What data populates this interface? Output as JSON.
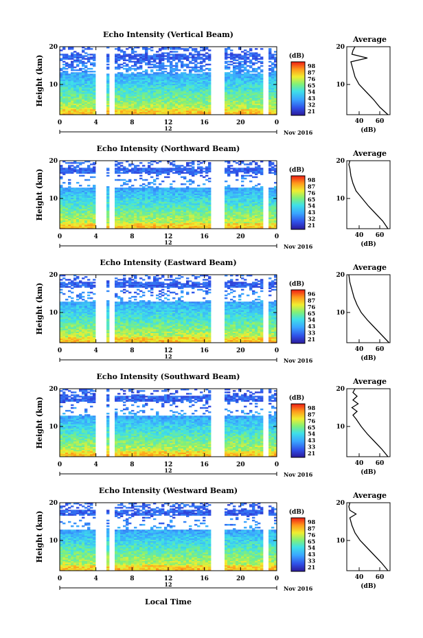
{
  "chart_data": {
    "type": "heatmap",
    "panels": [
      {
        "title": "Echo Intensity (Vertical Beam)",
        "ylabel": "Height (km)",
        "yticks": [
          "20",
          "10"
        ],
        "xticks": [
          "0",
          "4",
          "8",
          "12",
          "16",
          "20",
          "0"
        ],
        "date_marker": "12",
        "date_label": "Nov 2016",
        "colorbar_label": "(dB)",
        "colorbar_ticks": [
          "98",
          "87",
          "76",
          "65",
          "54",
          "43",
          "32",
          "21"
        ],
        "profile": {
          "title": "Average",
          "xlabel": "(dB)",
          "xticks": [
            "40",
            "60"
          ],
          "yticks": [
            "20",
            "10"
          ],
          "xlim": [
            28,
            70
          ],
          "heights_km": [
            2,
            4,
            6,
            8,
            10,
            12,
            14,
            16,
            17,
            18,
            19,
            20
          ],
          "values_db": [
            68,
            60,
            54,
            47,
            40,
            36,
            34,
            32,
            48,
            33,
            34,
            36
          ]
        }
      },
      {
        "title": "Echo Intensity (Northward Beam)",
        "ylabel": "Height (km)",
        "yticks": [
          "20",
          "10"
        ],
        "xticks": [
          "0",
          "4",
          "8",
          "12",
          "16",
          "20",
          "0"
        ],
        "date_marker": "12",
        "date_label": "Nov 2016",
        "colorbar_label": "(dB)",
        "colorbar_ticks": [
          "98",
          "87",
          "76",
          "65",
          "54",
          "43",
          "32",
          "21"
        ],
        "profile": {
          "title": "Average",
          "xlabel": "(dB)",
          "xticks": [
            "40",
            "60"
          ],
          "yticks": [
            "20",
            "10"
          ],
          "xlim": [
            28,
            70
          ],
          "heights_km": [
            2,
            4,
            6,
            8,
            10,
            12,
            14,
            16,
            18,
            19,
            20
          ],
          "values_db": [
            68,
            63,
            56,
            49,
            43,
            37,
            34,
            32,
            31,
            30,
            31
          ]
        }
      },
      {
        "title": "Echo Intensity (Eastward Beam)",
        "ylabel": "Height (km)",
        "yticks": [
          "20",
          "10"
        ],
        "xticks": [
          "0",
          "4",
          "8",
          "12",
          "16",
          "20",
          "0"
        ],
        "date_marker": "12",
        "date_label": "Nov 2016",
        "colorbar_label": "(dB)",
        "colorbar_ticks": [
          "96",
          "87",
          "76",
          "65",
          "54",
          "43",
          "33",
          "21"
        ],
        "profile": {
          "title": "Average",
          "xlabel": "(dB)",
          "xticks": [
            "40",
            "60"
          ],
          "yticks": [
            "20",
            "10"
          ],
          "xlim": [
            28,
            70
          ],
          "heights_km": [
            2,
            4,
            6,
            8,
            10,
            11,
            12,
            14,
            16,
            18,
            20
          ],
          "values_db": [
            69,
            62,
            55,
            48,
            42,
            40,
            38,
            35,
            33,
            31,
            30
          ]
        }
      },
      {
        "title": "Echo Intensity (Southward Beam)",
        "ylabel": "Height (km)",
        "yticks": [
          "20",
          "10"
        ],
        "xticks": [
          "0",
          "4",
          "8",
          "12",
          "16",
          "20",
          "0"
        ],
        "date_marker": "12",
        "date_label": "Nov 2016",
        "colorbar_label": "(dB)",
        "colorbar_ticks": [
          "98",
          "87",
          "76",
          "65",
          "54",
          "43",
          "33",
          "21"
        ],
        "profile": {
          "title": "Average",
          "xlabel": "(dB)",
          "xticks": [
            "40",
            "60"
          ],
          "yticks": [
            "20",
            "10"
          ],
          "xlim": [
            28,
            70
          ],
          "heights_km": [
            2,
            4,
            6,
            8,
            10,
            12,
            13,
            14,
            15,
            16,
            17,
            18,
            19,
            20
          ],
          "values_db": [
            68,
            62,
            55,
            48,
            42,
            37,
            34,
            38,
            33,
            39,
            34,
            38,
            34,
            36
          ]
        }
      },
      {
        "title": "Echo Intensity (Westward Beam)",
        "ylabel": "Height (km)",
        "yticks": [
          "20",
          "10"
        ],
        "xticks": [
          "0",
          "4",
          "8",
          "12",
          "16",
          "20",
          "0"
        ],
        "date_marker": "12",
        "date_label": "Nov 2016",
        "colorbar_label": "(dB)",
        "colorbar_ticks": [
          "98",
          "87",
          "76",
          "65",
          "54",
          "43",
          "33",
          "21"
        ],
        "profile": {
          "title": "Average",
          "xlabel": "(dB)",
          "xticks": [
            "40",
            "60"
          ],
          "yticks": [
            "20",
            "10"
          ],
          "xlim": [
            28,
            70
          ],
          "heights_km": [
            2,
            4,
            6,
            8,
            10,
            12,
            14,
            16,
            17,
            18,
            19,
            20
          ],
          "values_db": [
            68,
            62,
            55,
            48,
            41,
            36,
            33,
            31,
            37,
            31,
            30,
            31
          ]
        }
      }
    ],
    "xlabel": "Local Time",
    "ylim": [
      2,
      20
    ],
    "data_gaps_hours": [
      4.3,
      4.8,
      5.8,
      17.2,
      17.9,
      22.8
    ]
  }
}
